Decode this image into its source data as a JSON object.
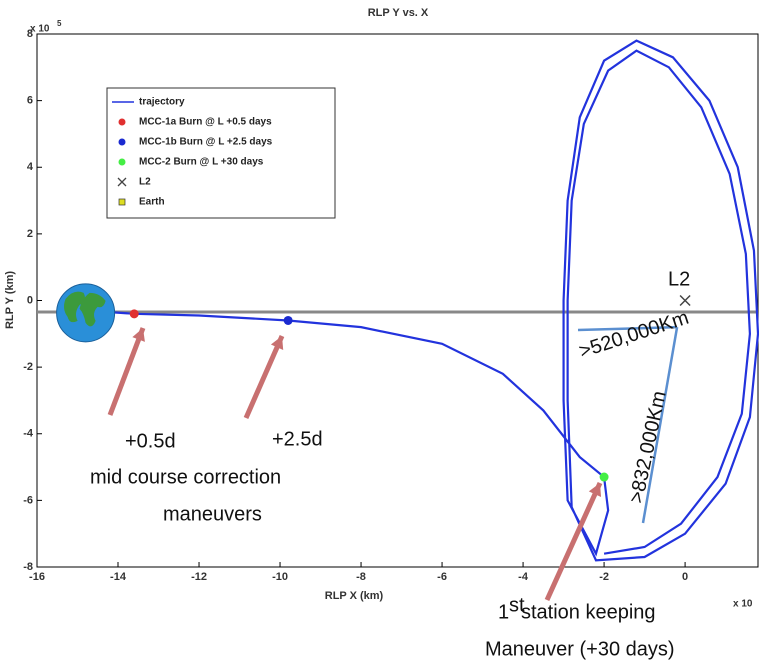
{
  "chart_data": {
    "type": "line",
    "title": "RLP Y vs. X",
    "x_label": "RLP X (km)",
    "y_label": "RLP Y (km)",
    "y_multiplier": {
      "base": "x 10",
      "exponent": "5"
    },
    "x_multiplier": {
      "base": "x 10"
    },
    "xlim": [
      -16,
      1.8
    ],
    "ylim": [
      -8,
      8
    ],
    "xticks": [
      -16,
      -14,
      -12,
      -10,
      -8,
      -6,
      -4,
      -2,
      0
    ],
    "yticks": [
      -8,
      -6,
      -4,
      -2,
      0,
      2,
      4,
      6,
      8
    ],
    "series": [
      {
        "name": "trajectory",
        "color": "#2233dd",
        "marker": "line",
        "x": [
          -14.8,
          -13.6,
          -12,
          -9.8,
          -8,
          -6,
          -4.5,
          -3.5,
          -2.6,
          -2.0,
          -1.9,
          -2.2,
          -2.9,
          -3.0,
          -3.0,
          -2.9,
          -2.6,
          -2.0,
          -1.2,
          -0.3,
          0.6,
          1.3,
          1.7,
          1.8,
          1.6,
          1.0,
          0,
          -1,
          -2.2,
          -2.8,
          -2.9,
          -2.9,
          -2.8,
          -2.5,
          -1.9,
          -1.2,
          -0.4,
          0.4,
          1.1,
          1.5,
          1.6,
          1.4,
          0.8,
          -0.1,
          -1.0,
          -2.0
        ],
        "y": [
          -0.3,
          -0.4,
          -0.45,
          -0.6,
          -0.8,
          -1.3,
          -2.2,
          -3.3,
          -4.7,
          -5.3,
          -6.3,
          -7.6,
          -6,
          -3,
          0,
          3,
          5.5,
          7.2,
          7.8,
          7.3,
          6,
          4,
          1.5,
          -1,
          -3.5,
          -5.5,
          -7,
          -7.7,
          -7.8,
          -6.2,
          -3,
          0,
          3,
          5.3,
          6.9,
          7.5,
          7.0,
          5.8,
          3.8,
          1.4,
          -1,
          -3.4,
          -5.3,
          -6.7,
          -7.4,
          -7.6
        ]
      },
      {
        "name": "MCC-1a Burn @ L +0.5 days",
        "color": "#e03030",
        "marker": "circle",
        "x": [
          -13.6
        ],
        "y": [
          -0.4
        ]
      },
      {
        "name": "MCC-1b Burn @ L +2.5 days",
        "color": "#1a2ad0",
        "marker": "circle",
        "x": [
          -9.8
        ],
        "y": [
          -0.6
        ]
      },
      {
        "name": "MCC-2 Burn @ L +30 days",
        "color": "#44ee44",
        "marker": "circle",
        "x": [
          -2.0
        ],
        "y": [
          -5.3
        ]
      },
      {
        "name": "L2",
        "color": "#444444",
        "marker": "x",
        "x": [
          0
        ],
        "y": [
          0
        ]
      },
      {
        "name": "Earth",
        "color": "#dddd22",
        "marker": "square",
        "x": [
          -14.8
        ],
        "y": [
          -0.37
        ]
      }
    ],
    "annotations": [
      "L2",
      "+0.5d",
      "+2.5d",
      "mid course correction",
      "maneuvers",
      ">520,000Km",
      ">832,000Km",
      "1",
      "st",
      " station keeping",
      "Maneuver (+30 days)"
    ]
  }
}
